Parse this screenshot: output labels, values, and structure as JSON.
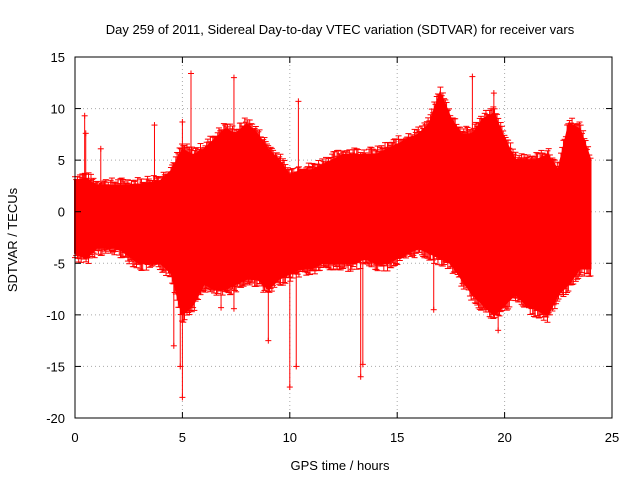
{
  "chart_data": {
    "type": "scatter",
    "title": "Day 259 of 2011, Sidereal Day-to-day VTEC variation (SDTVAR) for receiver vars",
    "xlabel": "GPS time / hours",
    "ylabel": "SDTVAR / TECUs",
    "xlim": [
      0,
      25
    ],
    "ylim": [
      -20,
      15
    ],
    "x_ticks": [
      0,
      5,
      10,
      15,
      20,
      25
    ],
    "y_ticks": [
      15,
      10,
      5,
      0,
      -5,
      -10,
      -15,
      -20
    ],
    "x_tick_labels": [
      "0",
      "5",
      "10",
      "15",
      "20",
      "25"
    ],
    "y_tick_labels": [
      "15",
      "10",
      "5",
      "0",
      "-5",
      "-10",
      "-15",
      "-20"
    ],
    "grid": true,
    "marker": "+",
    "series": [
      {
        "name": "SDTVAR",
        "color": "#ff0000",
        "envelope": {
          "x": [
            0,
            0.5,
            1,
            2,
            3,
            3.5,
            4,
            4.5,
            5,
            5.5,
            6,
            6.5,
            7,
            7.5,
            8,
            8.5,
            9,
            9.5,
            10,
            10.5,
            11,
            11.5,
            12,
            12.5,
            13,
            13.5,
            14,
            14.5,
            15,
            15.5,
            16,
            16.5,
            17,
            17.5,
            18,
            18.5,
            19,
            19.5,
            20,
            20.5,
            21,
            21.5,
            22,
            22.5,
            23,
            23.5,
            24
          ],
          "upper": [
            3,
            3.2,
            2.5,
            2.5,
            2.6,
            2.8,
            3,
            4,
            6,
            5.5,
            6,
            7,
            8,
            7.5,
            8.5,
            7.5,
            6,
            5,
            3.5,
            4,
            4,
            4.5,
            5,
            5.5,
            5.5,
            5.5,
            5.5,
            6,
            6.5,
            7,
            7.5,
            8.5,
            11.5,
            9,
            7.5,
            7.5,
            9,
            9.5,
            7,
            5,
            5,
            5,
            5.5,
            4,
            8.5,
            8,
            5
          ],
          "lower": [
            -4,
            -4.5,
            -3.5,
            -3.5,
            -5,
            -5,
            -5,
            -6,
            -10,
            -9,
            -7,
            -7.5,
            -7.5,
            -7,
            -6.5,
            -6.5,
            -7.5,
            -6.5,
            -6,
            -5.5,
            -5.5,
            -5,
            -5,
            -5,
            -5,
            -4.5,
            -5,
            -5,
            -4.5,
            -4,
            -3.5,
            -4,
            -4.5,
            -5,
            -6.5,
            -8,
            -9,
            -10,
            -9,
            -8,
            -9,
            -9.5,
            -10,
            -8,
            -7,
            -5.5,
            -5.5
          ]
        },
        "outliers": [
          {
            "x": 0.45,
            "y": 9.3
          },
          {
            "x": 0.5,
            "y": 7.6
          },
          {
            "x": 1.2,
            "y": 6.1
          },
          {
            "x": 3.7,
            "y": 8.4
          },
          {
            "x": 5.0,
            "y": 8.7
          },
          {
            "x": 5.4,
            "y": 13.4
          },
          {
            "x": 4.9,
            "y": -15.0
          },
          {
            "x": 5.0,
            "y": -18.0
          },
          {
            "x": 4.6,
            "y": -13.0
          },
          {
            "x": 7.4,
            "y": 13.0
          },
          {
            "x": 6.8,
            "y": -9.3
          },
          {
            "x": 7.4,
            "y": -9.4
          },
          {
            "x": 9.0,
            "y": -12.5
          },
          {
            "x": 10.0,
            "y": -17.0
          },
          {
            "x": 10.3,
            "y": -15.0
          },
          {
            "x": 10.4,
            "y": 10.7
          },
          {
            "x": 13.3,
            "y": -16.0
          },
          {
            "x": 13.4,
            "y": -14.8
          },
          {
            "x": 16.7,
            "y": -9.5
          },
          {
            "x": 18.5,
            "y": 13.1
          },
          {
            "x": 19.5,
            "y": 11.5
          },
          {
            "x": 19.7,
            "y": -11.5
          },
          {
            "x": 22.0,
            "y": -10.0
          }
        ]
      }
    ]
  }
}
